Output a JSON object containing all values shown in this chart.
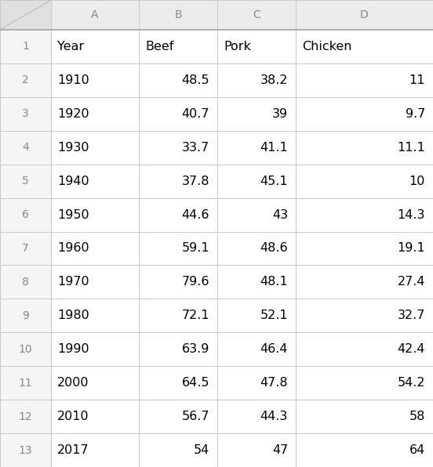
{
  "col_headers": [
    "",
    "A",
    "B",
    "C",
    "D"
  ],
  "headers": [
    "Year",
    "Beef",
    "Pork",
    "Chicken"
  ],
  "years": [
    "1910",
    "1920",
    "1930",
    "1940",
    "1950",
    "1960",
    "1970",
    "1980",
    "1990",
    "2000",
    "2010",
    "2017"
  ],
  "beef": [
    "48.5",
    "40.7",
    "33.7",
    "37.8",
    "44.6",
    "59.1",
    "79.6",
    "72.1",
    "63.9",
    "64.5",
    "56.7",
    "54"
  ],
  "pork": [
    "38.2",
    "39",
    "41.1",
    "45.1",
    "43",
    "48.6",
    "48.1",
    "52.1",
    "46.4",
    "47.8",
    "44.3",
    "47"
  ],
  "chicken": [
    "11",
    "9.7",
    "11.1",
    "10",
    "14.3",
    "19.1",
    "27.4",
    "32.7",
    "42.4",
    "54.2",
    "58",
    "64"
  ],
  "row_nums": [
    "1",
    "2",
    "3",
    "4",
    "5",
    "6",
    "7",
    "8",
    "9",
    "10",
    "11",
    "12",
    "13"
  ],
  "bg_color": "#ffffff",
  "col_header_bg": "#ececec",
  "row_header_bg": "#f5f5f5",
  "corner_bg": "#e0e0e0",
  "grid_color": "#c8c8c8",
  "row_number_color": "#888888",
  "col_header_color": "#888888",
  "text_color": "#000000",
  "font_size_data": 11.5,
  "font_size_colhdr": 10.0
}
